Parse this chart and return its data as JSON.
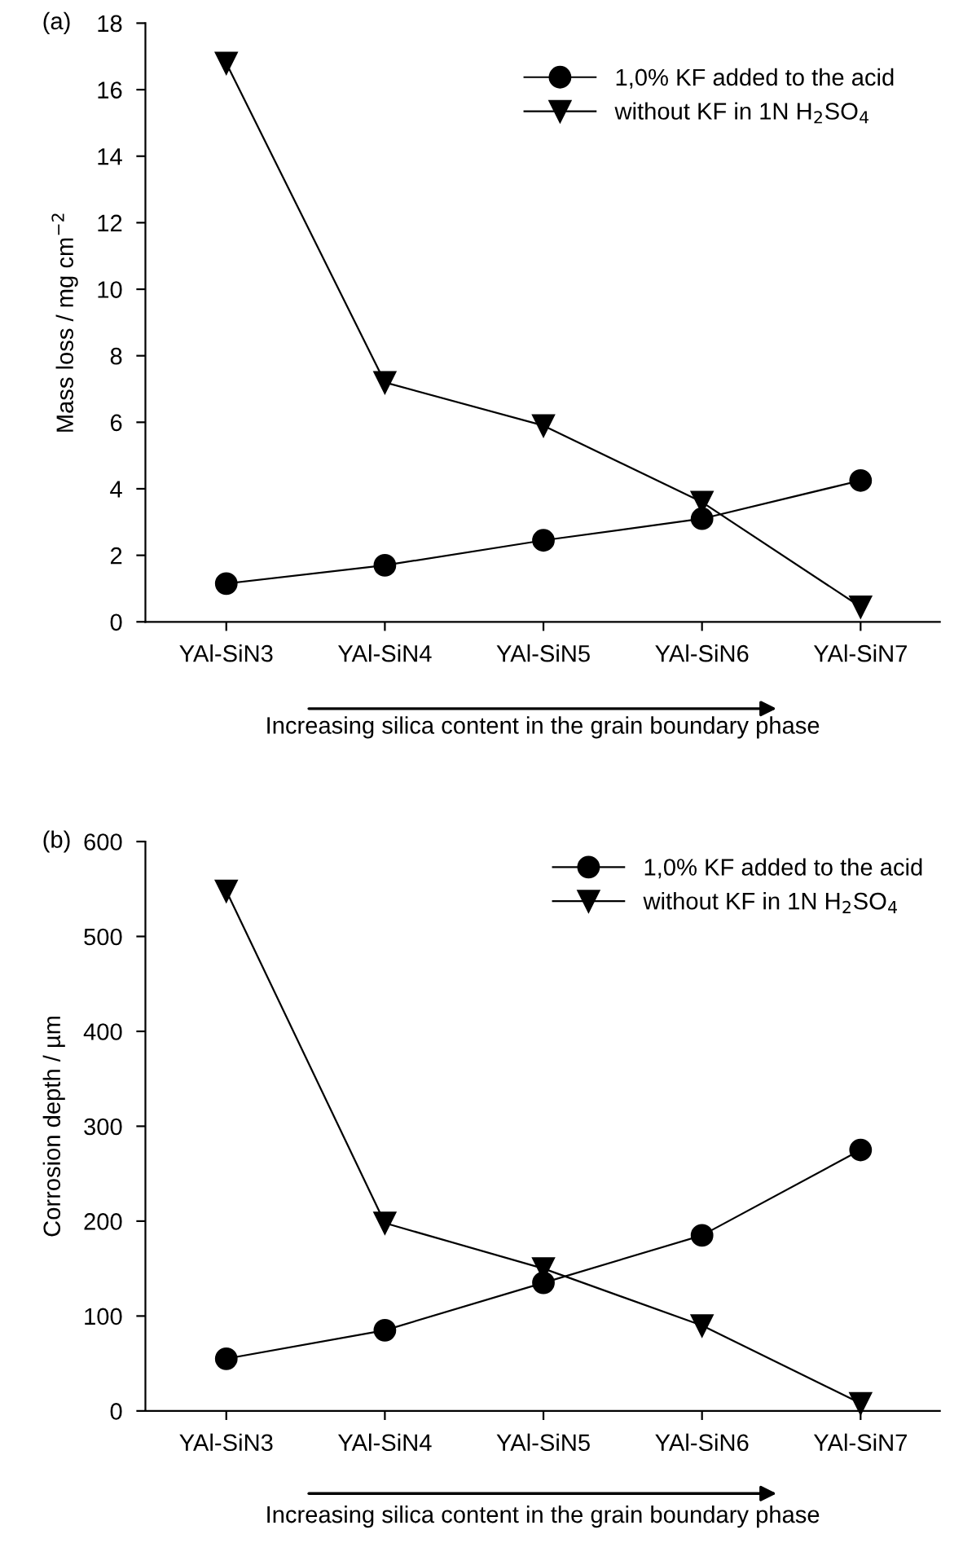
{
  "chart_data": [
    {
      "type": "line",
      "title": "(a)",
      "xlabel": "Increasing silica content in the grain boundary phase",
      "ylabel": "Mass loss / mg cm$^{−2}$",
      "categories": [
        "YAl-SiN3",
        "YAl-SiN4",
        "YAl-SiN5",
        "YAl-SiN6",
        "YAl-SiN7"
      ],
      "series": [
        {
          "name": "1,0% KF added to the acid",
          "color": "#000000",
          "marker": "circle",
          "values": [
            1.15,
            1.7,
            2.45,
            3.1,
            4.25
          ]
        },
        {
          "name": "without KF in 1N H$_{2}$SO$_{4}$",
          "color": "#000000",
          "marker": "triangle",
          "values": [
            16.8,
            7.2,
            5.9,
            3.6,
            0.45
          ]
        }
      ],
      "ylim": [
        0,
        18
      ],
      "yticks": [
        0,
        2,
        4,
        6,
        8,
        10,
        12,
        14,
        16,
        18
      ],
      "grid": false,
      "legend": "top right",
      "line_style": "solid"
    },
    {
      "type": "line",
      "title": "(b)",
      "xlabel": "Increasing silica content in the grain boundary phase",
      "ylabel": "Corrosion depth / µm",
      "categories": [
        "YAl-SiN3",
        "YAl-SiN4",
        "YAl-SiN5",
        "YAl-SiN6",
        "YAl-SiN7"
      ],
      "series": [
        {
          "name": "1,0% KF added to the acid",
          "color": "#000000",
          "marker": "circle",
          "values": [
            55,
            85,
            135,
            185,
            275
          ]
        },
        {
          "name": "without KF in 1N H$_{2}$SO$_{4}$",
          "color": "#000000",
          "marker": "triangle",
          "values": [
            548,
            198,
            150,
            90,
            8
          ]
        }
      ],
      "ylim": [
        0,
        600
      ],
      "yticks": [
        0,
        100,
        200,
        300,
        400,
        500,
        600
      ],
      "grid": false,
      "legend": "top right",
      "line_style": "solid"
    }
  ]
}
